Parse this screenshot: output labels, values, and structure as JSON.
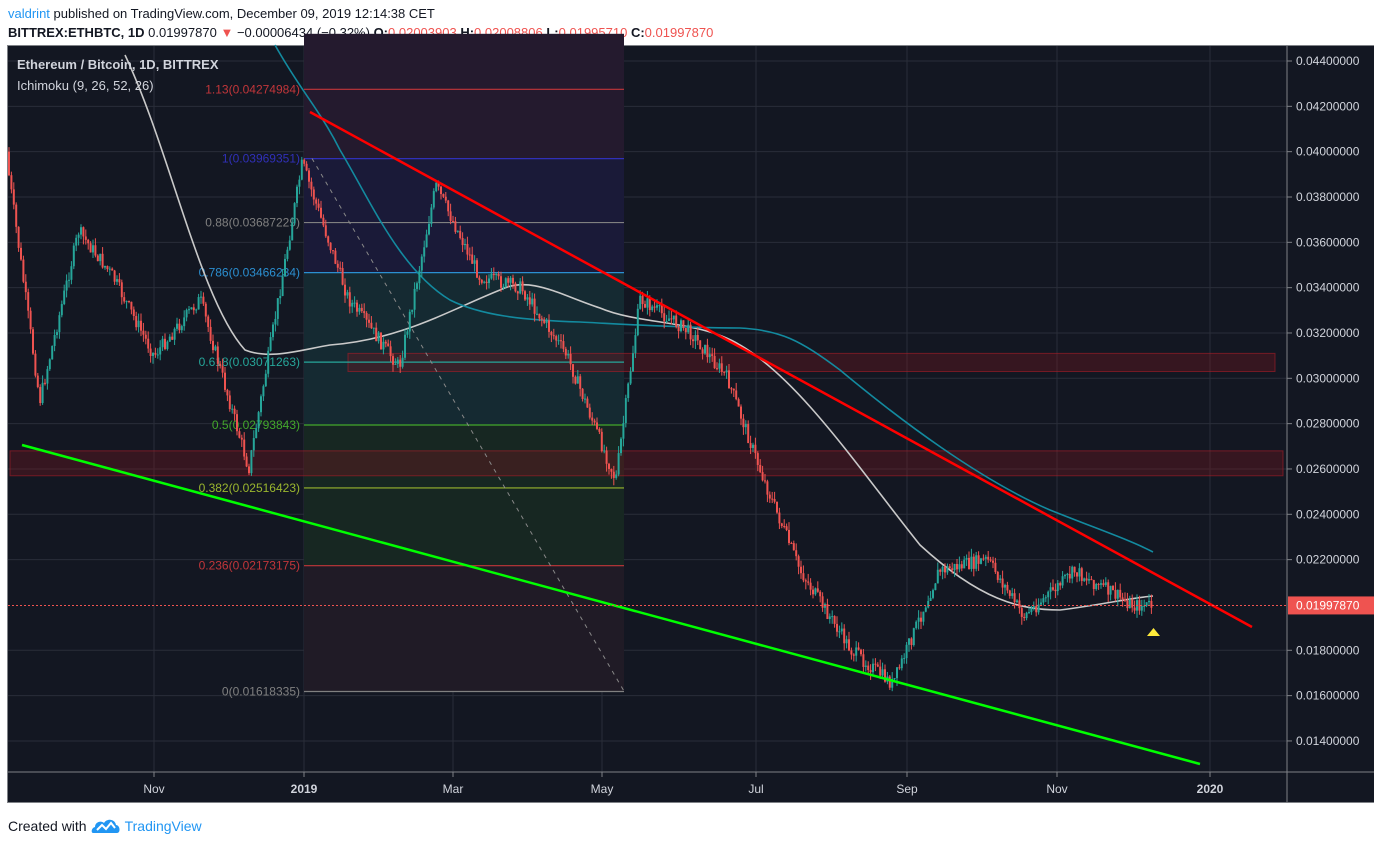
{
  "header": {
    "publisher": "valdrint",
    "published_text": "published on TradingView.com, December 09, 2019 12:14:38 CET",
    "symbol": "BITTREX:ETHBTC, 1D",
    "last_price": "0.01997870",
    "change_icon": "triangle-down-icon",
    "change": "−0.00006434 (−0.32%)",
    "ohlc": {
      "o_label": "O:",
      "o": "0.02003903",
      "h_label": "H:",
      "h": "0.02008806",
      "l_label": "L:",
      "l": "0.01995710",
      "c_label": "C:",
      "c": "0.01997870"
    }
  },
  "legend": {
    "title": "Ethereum / Bitcoin, 1D, BITTREX",
    "indicator": "Ichimoku (9, 26, 52, 26)"
  },
  "footer": {
    "created_with": "Created with",
    "brand": "TradingView",
    "logo_icon": "tradingview-cloud-icon"
  },
  "colors": {
    "background": "#131722",
    "grid": "#2a2e39",
    "up_candle": "#26a69a",
    "down_candle": "#ef5350",
    "resistance_line": "#ff0000",
    "support_line": "#00ff00",
    "kijun_line": "#c9c9c9",
    "ichimoku_base": "#138a9f",
    "price_label_bg": "#ef5350",
    "marker": "#ffeb3b"
  },
  "chart_data": {
    "type": "candlestick",
    "title": "Ethereum / Bitcoin, 1D, BITTREX",
    "xlabel": "",
    "ylabel": "",
    "ylim": [
      0.0128,
      0.0452
    ],
    "grid": true,
    "y_ticks": [
      "0.04400000",
      "0.04200000",
      "0.04000000",
      "0.03800000",
      "0.03600000",
      "0.03400000",
      "0.03200000",
      "0.03000000",
      "0.02800000",
      "0.02600000",
      "0.02400000",
      "0.02200000",
      "0.01800000",
      "0.01600000",
      "0.01400000"
    ],
    "x_ticks": [
      "Nov",
      "2019",
      "Mar",
      "May",
      "Jul",
      "Sep",
      "Nov",
      "2020"
    ],
    "current_price_label": "0.01997870",
    "approx_close_path": [
      {
        "date": "2018-09",
        "close": 0.04
      },
      {
        "date": "2018-09-15",
        "close": 0.029
      },
      {
        "date": "2018-10-01",
        "close": 0.0365
      },
      {
        "date": "2018-10-15",
        "close": 0.0345
      },
      {
        "date": "2018-11-01",
        "close": 0.031
      },
      {
        "date": "2018-11-20",
        "close": 0.0335
      },
      {
        "date": "2018-12-10",
        "close": 0.026
      },
      {
        "date": "2019-01-01",
        "close": 0.0395
      },
      {
        "date": "2019-01-20",
        "close": 0.0335
      },
      {
        "date": "2019-02-10",
        "close": 0.0305
      },
      {
        "date": "2019-02-25",
        "close": 0.0385
      },
      {
        "date": "2019-03-15",
        "close": 0.0345
      },
      {
        "date": "2019-04-01",
        "close": 0.034
      },
      {
        "date": "2019-04-20",
        "close": 0.031
      },
      {
        "date": "2019-05-10",
        "close": 0.0255
      },
      {
        "date": "2019-05-20",
        "close": 0.0335
      },
      {
        "date": "2019-06-10",
        "close": 0.032
      },
      {
        "date": "2019-06-25",
        "close": 0.03
      },
      {
        "date": "2019-07-10",
        "close": 0.0255
      },
      {
        "date": "2019-07-25",
        "close": 0.0215
      },
      {
        "date": "2019-08-15",
        "close": 0.018
      },
      {
        "date": "2019-09-01",
        "close": 0.0165
      },
      {
        "date": "2019-09-20",
        "close": 0.0215
      },
      {
        "date": "2019-10-10",
        "close": 0.022
      },
      {
        "date": "2019-10-25",
        "close": 0.0195
      },
      {
        "date": "2019-11-15",
        "close": 0.0215
      },
      {
        "date": "2019-12-09",
        "close": 0.0199787
      }
    ],
    "fibonacci": [
      {
        "level": "1.13",
        "price": 0.04274984,
        "label": "1.13(0.04274984)",
        "color": "#c2363a"
      },
      {
        "level": "1",
        "price": 0.03969351,
        "label": "1(0.03969351)",
        "color": "#3030b8"
      },
      {
        "level": "0.88",
        "price": 0.03687229,
        "label": "0.88(0.03687229)",
        "color": "#808080"
      },
      {
        "level": "0.786",
        "price": 0.03466234,
        "label": "0.786(0.03466234)",
        "color": "#2b8fd1"
      },
      {
        "level": "0.618",
        "price": 0.03071263,
        "label": "0.618(0.03071263)",
        "color": "#26a69a"
      },
      {
        "level": "0.5",
        "price": 0.02793843,
        "label": "0.5(0.02793843)",
        "color": "#43a82b"
      },
      {
        "level": "0.382",
        "price": 0.02516423,
        "label": "0.382(0.02516423)",
        "color": "#9ab62e"
      },
      {
        "level": "0.236",
        "price": 0.02173175,
        "label": "0.236(0.02173175)",
        "color": "#c2363a"
      },
      {
        "level": "0",
        "price": 0.01618335,
        "label": "0(0.01618335)",
        "color": "#808080"
      }
    ],
    "annotations": [
      {
        "type": "trendline",
        "name": "descending resistance",
        "color": "#ff0000",
        "from": {
          "date": "2019-01-01",
          "price": 0.0418
        },
        "to": {
          "date": "2019-12-31",
          "price": 0.019
        }
      },
      {
        "type": "trendline",
        "name": "descending support",
        "color": "#00ff00",
        "from": {
          "date": "2018-09-10",
          "price": 0.027
        },
        "to": {
          "date": "2020-01-01",
          "price": 0.013
        }
      },
      {
        "type": "zone",
        "name": "resistance zone",
        "range": [
          0.0303,
          0.0311
        ]
      },
      {
        "type": "zone",
        "name": "support zone",
        "range": [
          0.0257,
          0.0268
        ]
      },
      {
        "type": "marker",
        "shape": "triangle-up",
        "color": "#ffeb3b",
        "price": 0.0188,
        "date": "2019-12-10"
      }
    ],
    "indicators": [
      {
        "name": "Ichimoku (9, 26, 52, 26)"
      }
    ]
  }
}
